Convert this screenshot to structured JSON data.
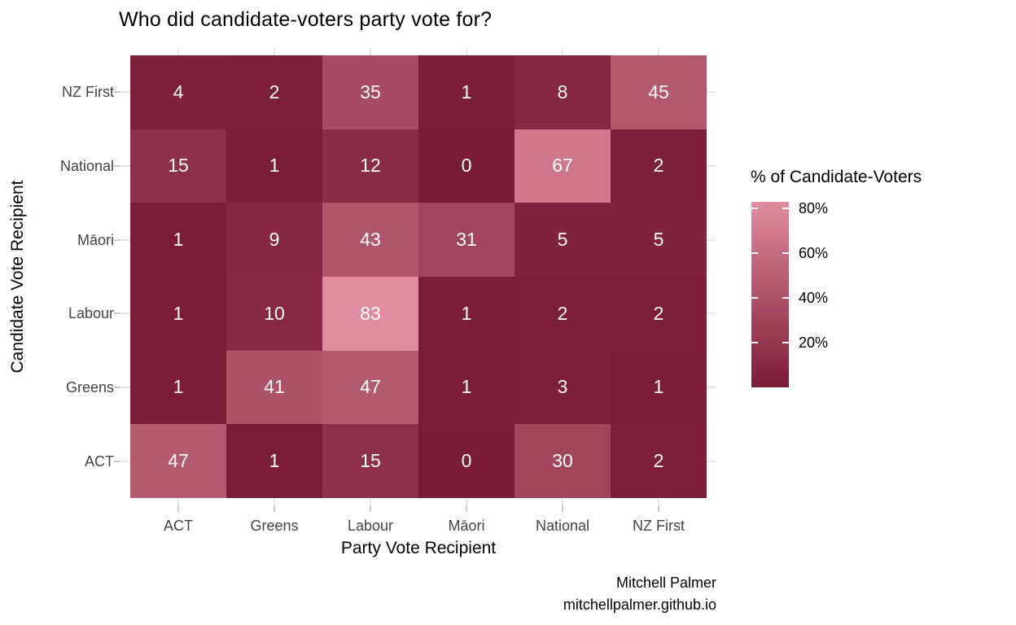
{
  "title": "Who did candidate-voters party vote for?",
  "caption": {
    "line1": "Mitchell Palmer",
    "line2": "mitchellpalmer.github.io"
  },
  "chart_data": {
    "type": "heatmap",
    "title": "Who did candidate-voters party vote for?",
    "xlabel": "Party Vote Recipient",
    "ylabel": "Candidate Vote Recipient",
    "x_categories": [
      "ACT",
      "Greens",
      "Labour",
      "Māori",
      "National",
      "NZ First"
    ],
    "y_categories_top_to_bottom": [
      "NZ First",
      "National",
      "Māori",
      "Labour",
      "Greens",
      "ACT"
    ],
    "values_by_row": [
      [
        4,
        2,
        35,
        1,
        8,
        45
      ],
      [
        15,
        1,
        12,
        0,
        67,
        2
      ],
      [
        1,
        9,
        43,
        31,
        5,
        5
      ],
      [
        1,
        10,
        83,
        1,
        2,
        2
      ],
      [
        1,
        41,
        47,
        1,
        3,
        1
      ],
      [
        47,
        1,
        15,
        0,
        30,
        2
      ]
    ],
    "value_unit": "percent",
    "legend": {
      "title": "% of Candidate-Voters",
      "tick_labels": [
        "80%",
        "60%",
        "40%",
        "20%"
      ],
      "tick_values": [
        80,
        60,
        40,
        20
      ],
      "range": [
        0,
        83
      ],
      "position": "right"
    },
    "colors": {
      "fill_low": "#7b1c36",
      "fill_high_at_max": "#e08ba0",
      "max_value": 83,
      "cell_text": "#ffffff",
      "gridline": "#e6e6e6",
      "axis_text": "#444444",
      "axis_tick": "#c9c9c9"
    },
    "grid": true
  }
}
